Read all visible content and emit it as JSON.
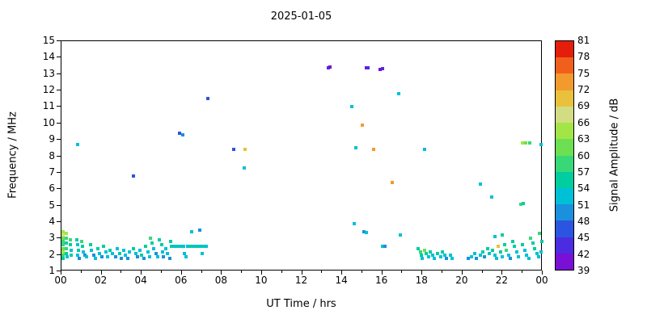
{
  "chart_data": {
    "type": "scatter",
    "title": "2025-01-05",
    "xlabel": "UT Time / hrs",
    "ylabel": "Frequency / MHz",
    "xlim": [
      0,
      24
    ],
    "ylim": [
      1,
      15
    ],
    "grid": false,
    "xticks": {
      "values": [
        0,
        2,
        4,
        6,
        8,
        10,
        12,
        14,
        16,
        18,
        20,
        22,
        24
      ],
      "labels": [
        "00",
        "02",
        "04",
        "06",
        "08",
        "10",
        "12",
        "14",
        "16",
        "18",
        "20",
        "22",
        "00"
      ],
      "minor": [
        1,
        3,
        5,
        7,
        9,
        11,
        13,
        15,
        17,
        19,
        21,
        23
      ]
    },
    "yticks": {
      "values": [
        1,
        2,
        3,
        4,
        5,
        6,
        7,
        8,
        9,
        10,
        11,
        12,
        13,
        14,
        15
      ],
      "labels": [
        "1",
        "2",
        "3",
        "4",
        "5",
        "6",
        "7",
        "8",
        "9",
        "10",
        "11",
        "12",
        "13",
        "14",
        "15"
      ]
    },
    "colorbar": {
      "label": "Signal Amplitude / dB",
      "min": 39,
      "max": 81,
      "step": 3,
      "ticks": [
        39,
        42,
        45,
        48,
        51,
        54,
        57,
        60,
        63,
        66,
        69,
        72,
        75,
        78,
        81
      ],
      "colors": [
        "#7a0fd6",
        "#4b2ce0",
        "#2b55e0",
        "#1b90dc",
        "#00c0d8",
        "#00cda0",
        "#38d878",
        "#6ce052",
        "#a2e546",
        "#d2dc82",
        "#e9c13c",
        "#f29a2e",
        "#f0601c",
        "#e41e0a"
      ]
    },
    "points": [
      [
        0.08,
        3.4,
        63
      ],
      [
        0.08,
        3.2,
        66
      ],
      [
        0.08,
        3.0,
        60
      ],
      [
        0.08,
        2.8,
        57
      ],
      [
        0.08,
        2.6,
        57
      ],
      [
        0.08,
        2.4,
        60
      ],
      [
        0.08,
        2.2,
        63
      ],
      [
        0.08,
        2.0,
        57
      ],
      [
        0.08,
        1.8,
        54
      ],
      [
        0.25,
        3.3,
        63
      ],
      [
        0.25,
        3.0,
        57
      ],
      [
        0.25,
        2.7,
        54
      ],
      [
        0.25,
        2.4,
        57
      ],
      [
        0.25,
        2.1,
        54
      ],
      [
        0.3,
        1.9,
        51
      ],
      [
        0.45,
        2.9,
        57
      ],
      [
        0.45,
        2.6,
        54
      ],
      [
        0.5,
        2.3,
        51
      ],
      [
        0.5,
        2.0,
        54
      ],
      [
        0.8,
        8.7,
        51
      ],
      [
        0.75,
        2.9,
        54
      ],
      [
        0.8,
        2.6,
        51
      ],
      [
        0.85,
        2.3,
        54
      ],
      [
        0.8,
        2.0,
        51
      ],
      [
        0.9,
        1.8,
        48
      ],
      [
        1.0,
        2.8,
        57
      ],
      [
        1.05,
        2.5,
        54
      ],
      [
        1.1,
        2.2,
        51
      ],
      [
        1.15,
        2.0,
        48
      ],
      [
        1.25,
        1.9,
        51
      ],
      [
        1.45,
        2.6,
        54
      ],
      [
        1.5,
        2.3,
        51
      ],
      [
        1.6,
        2.0,
        48
      ],
      [
        1.7,
        1.8,
        51
      ],
      [
        1.8,
        2.4,
        54
      ],
      [
        1.9,
        2.1,
        51
      ],
      [
        2.0,
        1.9,
        48
      ],
      [
        2.1,
        2.5,
        54
      ],
      [
        2.2,
        2.2,
        51
      ],
      [
        2.3,
        1.9,
        51
      ],
      [
        2.4,
        2.3,
        54
      ],
      [
        2.55,
        2.1,
        51
      ],
      [
        2.7,
        1.9,
        48
      ],
      [
        2.8,
        2.4,
        51
      ],
      [
        2.9,
        2.1,
        54
      ],
      [
        3.0,
        1.8,
        48
      ],
      [
        3.1,
        2.3,
        51
      ],
      [
        3.2,
        2.0,
        51
      ],
      [
        3.3,
        1.8,
        48
      ],
      [
        3.4,
        2.2,
        51
      ],
      [
        3.6,
        6.8,
        45
      ],
      [
        3.6,
        2.4,
        54
      ],
      [
        3.7,
        2.1,
        51
      ],
      [
        3.8,
        1.9,
        48
      ],
      [
        3.9,
        2.3,
        51
      ],
      [
        4.0,
        2.0,
        54
      ],
      [
        4.1,
        1.8,
        48
      ],
      [
        4.2,
        2.5,
        54
      ],
      [
        4.3,
        2.2,
        51
      ],
      [
        4.4,
        1.9,
        51
      ],
      [
        4.45,
        3.0,
        57
      ],
      [
        4.5,
        2.7,
        54
      ],
      [
        4.6,
        2.4,
        51
      ],
      [
        4.7,
        2.1,
        48
      ],
      [
        4.8,
        1.9,
        51
      ],
      [
        4.9,
        2.9,
        54
      ],
      [
        5.0,
        2.6,
        54
      ],
      [
        5.05,
        2.2,
        51
      ],
      [
        5.1,
        1.9,
        48
      ],
      [
        5.2,
        2.4,
        51
      ],
      [
        5.3,
        2.1,
        51
      ],
      [
        5.4,
        1.8,
        48
      ],
      [
        5.45,
        2.8,
        54
      ],
      [
        5.5,
        2.5,
        54
      ],
      [
        5.65,
        2.5,
        51
      ],
      [
        5.8,
        2.5,
        54
      ],
      [
        5.9,
        2.5,
        51
      ],
      [
        5.9,
        9.4,
        45
      ],
      [
        6.05,
        9.3,
        48
      ],
      [
        6.0,
        2.5,
        54
      ],
      [
        6.1,
        2.5,
        51
      ],
      [
        6.15,
        2.1,
        51
      ],
      [
        6.2,
        1.9,
        51
      ],
      [
        6.3,
        2.5,
        51
      ],
      [
        6.45,
        2.5,
        54
      ],
      [
        6.6,
        2.5,
        51
      ],
      [
        6.75,
        2.5,
        54
      ],
      [
        6.9,
        2.5,
        51
      ],
      [
        7.05,
        2.5,
        54
      ],
      [
        7.2,
        2.5,
        51
      ],
      [
        6.5,
        3.4,
        51
      ],
      [
        6.9,
        3.5,
        48
      ],
      [
        7.0,
        2.1,
        51
      ],
      [
        7.3,
        11.5,
        45
      ],
      [
        8.6,
        8.4,
        45
      ],
      [
        9.15,
        8.4,
        69
      ],
      [
        9.1,
        7.3,
        51
      ],
      [
        13.3,
        13.4,
        42
      ],
      [
        13.4,
        13.45,
        39
      ],
      [
        14.5,
        11.0,
        51
      ],
      [
        14.7,
        8.5,
        51
      ],
      [
        15.0,
        9.9,
        72
      ],
      [
        15.2,
        13.4,
        39
      ],
      [
        15.3,
        13.4,
        42
      ],
      [
        15.55,
        8.4,
        72
      ],
      [
        15.9,
        13.3,
        39
      ],
      [
        16.0,
        13.35,
        42
      ],
      [
        16.5,
        6.4,
        72
      ],
      [
        16.8,
        11.8,
        51
      ],
      [
        14.6,
        3.9,
        51
      ],
      [
        15.1,
        3.4,
        48
      ],
      [
        15.2,
        3.35,
        51
      ],
      [
        16.0,
        2.5,
        51
      ],
      [
        16.15,
        2.5,
        48
      ],
      [
        16.9,
        3.2,
        51
      ],
      [
        17.8,
        2.4,
        54
      ],
      [
        17.9,
        2.2,
        57
      ],
      [
        17.95,
        2.0,
        54
      ],
      [
        18.0,
        1.8,
        51
      ],
      [
        18.1,
        2.3,
        60
      ],
      [
        18.2,
        2.1,
        54
      ],
      [
        18.3,
        1.9,
        51
      ],
      [
        18.4,
        2.2,
        54
      ],
      [
        18.5,
        2.0,
        51
      ],
      [
        18.6,
        1.8,
        51
      ],
      [
        18.75,
        2.1,
        54
      ],
      [
        18.9,
        1.9,
        51
      ],
      [
        19.0,
        2.2,
        54
      ],
      [
        19.1,
        2.0,
        51
      ],
      [
        19.2,
        1.8,
        48
      ],
      [
        19.4,
        2.0,
        51
      ],
      [
        19.5,
        1.8,
        51
      ],
      [
        18.1,
        8.4,
        51
      ],
      [
        20.3,
        1.8,
        48
      ],
      [
        20.45,
        1.9,
        51
      ],
      [
        20.6,
        2.1,
        51
      ],
      [
        20.7,
        1.8,
        48
      ],
      [
        20.9,
        2.0,
        51
      ],
      [
        21.0,
        2.2,
        54
      ],
      [
        21.1,
        1.9,
        48
      ],
      [
        21.25,
        2.4,
        54
      ],
      [
        21.35,
        2.1,
        51
      ],
      [
        20.9,
        6.3,
        51
      ],
      [
        21.45,
        5.5,
        51
      ],
      [
        21.5,
        2.3,
        54
      ],
      [
        21.6,
        2.0,
        51
      ],
      [
        21.7,
        1.8,
        51
      ],
      [
        21.8,
        2.5,
        69
      ],
      [
        21.9,
        2.2,
        54
      ],
      [
        22.0,
        1.9,
        51
      ],
      [
        22.1,
        2.6,
        54
      ],
      [
        22.2,
        2.3,
        57
      ],
      [
        22.3,
        2.0,
        51
      ],
      [
        22.4,
        1.8,
        48
      ],
      [
        21.6,
        3.1,
        51
      ],
      [
        22.0,
        3.2,
        54
      ],
      [
        22.5,
        2.8,
        54
      ],
      [
        22.6,
        2.5,
        54
      ],
      [
        22.7,
        2.2,
        51
      ],
      [
        22.8,
        1.9,
        51
      ],
      [
        22.9,
        5.1,
        57
      ],
      [
        23.05,
        5.15,
        54
      ],
      [
        23.0,
        8.8,
        63
      ],
      [
        23.15,
        8.8,
        60
      ],
      [
        23.35,
        8.8,
        57
      ],
      [
        23.9,
        8.7,
        51
      ],
      [
        23.0,
        2.6,
        54
      ],
      [
        23.1,
        2.3,
        51
      ],
      [
        23.2,
        2.0,
        51
      ],
      [
        23.3,
        1.8,
        51
      ],
      [
        23.4,
        3.0,
        57
      ],
      [
        23.5,
        2.7,
        54
      ],
      [
        23.6,
        2.4,
        54
      ],
      [
        23.7,
        2.1,
        51
      ],
      [
        23.8,
        1.9,
        51
      ],
      [
        23.85,
        3.3,
        57
      ],
      [
        23.95,
        2.8,
        54
      ],
      [
        23.9,
        2.2,
        51
      ]
    ]
  }
}
